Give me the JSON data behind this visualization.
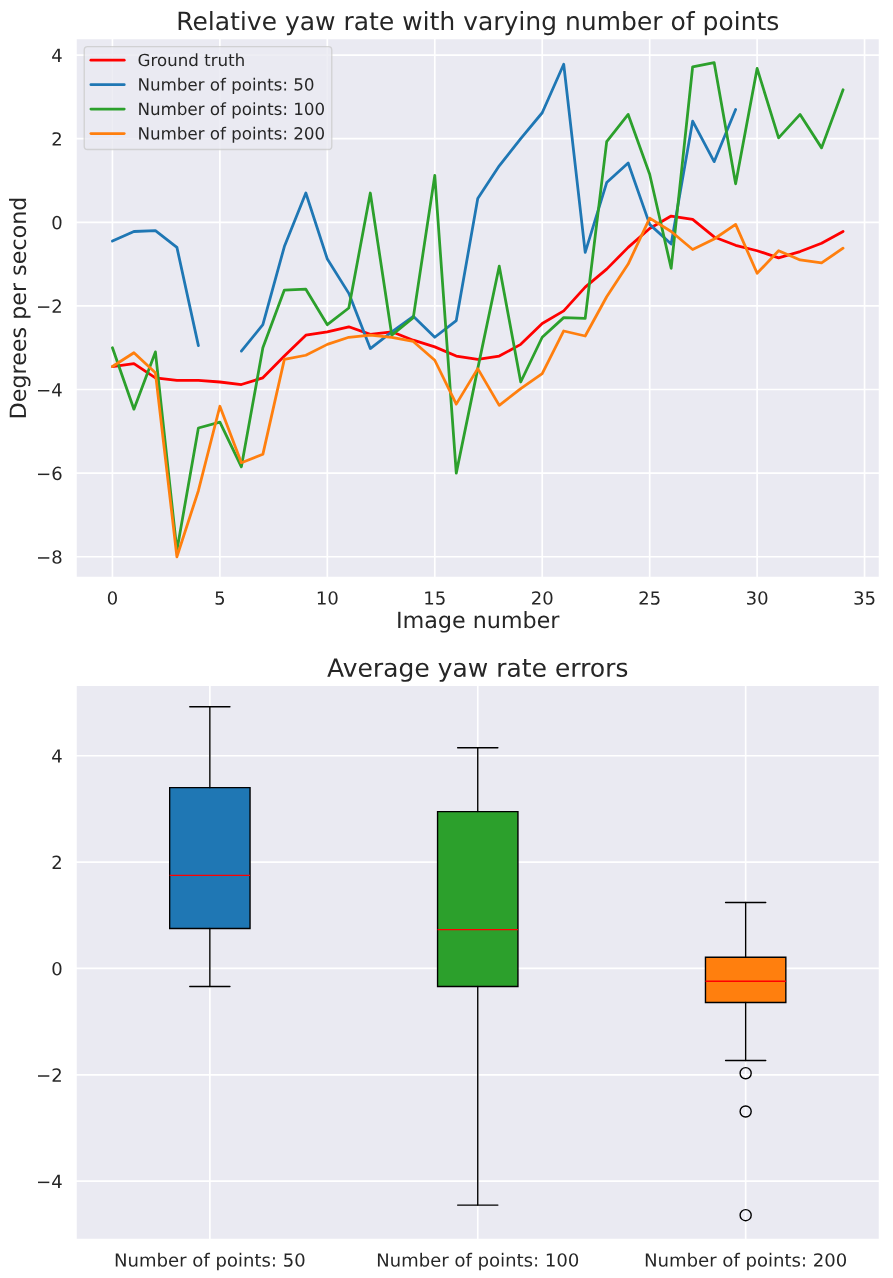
{
  "chart_data": [
    {
      "type": "line",
      "title": "Relative yaw rate with varying number of points",
      "xlabel": "Image number",
      "ylabel": "Degrees per second",
      "x": [
        0,
        1,
        2,
        3,
        4,
        5,
        6,
        7,
        8,
        9,
        10,
        11,
        12,
        13,
        14,
        15,
        16,
        17,
        18,
        19,
        20,
        21,
        22,
        23,
        24,
        25,
        26,
        27,
        28,
        29,
        30,
        31,
        32,
        33,
        34
      ],
      "xlim": [
        -1.7,
        35.7
      ],
      "xticks": [
        0,
        5,
        10,
        15,
        20,
        25,
        30,
        35
      ],
      "ylim": [
        -8.5,
        4.4
      ],
      "yticks": [
        {
          "value": -8,
          "label": "−8"
        },
        {
          "value": -6,
          "label": "−6"
        },
        {
          "value": -4,
          "label": "−4"
        },
        {
          "value": -2,
          "label": "−2"
        },
        0,
        2,
        4
      ],
      "grid": true,
      "legend": "top left",
      "line_style": "solid",
      "series": [
        {
          "name": "Ground truth",
          "color": "#ff0000",
          "values": [
            -3.45,
            -3.38,
            -3.72,
            -3.78,
            -3.78,
            -3.82,
            -3.88,
            -3.72,
            -3.2,
            -2.7,
            -2.62,
            -2.5,
            -2.68,
            -2.62,
            -2.82,
            -2.98,
            -3.2,
            -3.28,
            -3.2,
            -2.92,
            -2.42,
            -2.12,
            -1.55,
            -1.12,
            -0.6,
            -0.15,
            0.15,
            0.07,
            -0.35,
            -0.55,
            -0.68,
            -0.85,
            -0.7,
            -0.5,
            -0.22
          ]
        },
        {
          "name": "Number of points: 50",
          "color": "#1f77b4",
          "values": [
            -0.45,
            -0.22,
            -0.2,
            -0.6,
            -2.95,
            null,
            -3.08,
            -2.45,
            -0.58,
            0.7,
            -0.88,
            -1.7,
            -3.02,
            -2.62,
            -2.25,
            -2.75,
            -2.35,
            0.57,
            1.35,
            2.0,
            2.62,
            3.78,
            -0.72,
            0.95,
            1.42,
            -0.05,
            -0.52,
            2.42,
            1.45,
            2.7,
            null,
            null,
            null,
            null,
            null
          ]
        },
        {
          "name": "Number of points: 100",
          "color": "#2ca02c",
          "values": [
            -3.0,
            -4.47,
            -3.1,
            -7.85,
            -4.92,
            -4.78,
            -5.85,
            -3.0,
            -1.62,
            -1.6,
            -2.45,
            -2.05,
            0.7,
            -2.7,
            -2.28,
            1.12,
            -6.0,
            -3.5,
            -1.05,
            -3.82,
            -2.75,
            -2.28,
            -2.3,
            1.93,
            2.58,
            1.15,
            -1.1,
            3.72,
            3.82,
            0.92,
            3.68,
            2.02,
            2.58,
            1.78,
            3.17
          ]
        },
        {
          "name": "Number of points: 200",
          "color": "#ff7f0e",
          "values": [
            -3.45,
            -3.12,
            -3.6,
            -8.0,
            -6.42,
            -4.4,
            -5.75,
            -5.55,
            -3.28,
            -3.18,
            -2.92,
            -2.75,
            -2.7,
            -2.75,
            -2.85,
            -3.3,
            -4.35,
            -3.5,
            -4.38,
            -3.98,
            -3.62,
            -2.6,
            -2.72,
            -1.78,
            -1.0,
            0.1,
            -0.22,
            -0.65,
            -0.4,
            -0.05,
            -1.22,
            -0.68,
            -0.9,
            -0.97,
            -0.62
          ]
        }
      ]
    },
    {
      "type": "box",
      "title": "Average yaw rate errors",
      "categories": [
        "Number of points: 50",
        "Number of points: 100",
        "Number of points: 200"
      ],
      "colors": [
        "#1f77b4",
        "#2ca02c",
        "#ff7f0e"
      ],
      "ylim": [
        -5.1,
        5.33
      ],
      "yticks": [
        {
          "value": -4,
          "label": "−4"
        },
        {
          "value": -2,
          "label": "−2"
        },
        0,
        2,
        4
      ],
      "grid": true,
      "boxes": [
        {
          "low": -0.34,
          "q1": 0.75,
          "median": 1.75,
          "q3": 3.4,
          "high": 4.92
        },
        {
          "low": -4.45,
          "q1": -0.34,
          "median": 0.73,
          "q3": 2.95,
          "high": 4.15
        },
        {
          "low": -1.73,
          "q1": -0.64,
          "median": -0.24,
          "q3": 0.21,
          "high": 1.24,
          "outliers": [
            -1.97,
            -2.69,
            -4.64
          ]
        }
      ]
    }
  ]
}
